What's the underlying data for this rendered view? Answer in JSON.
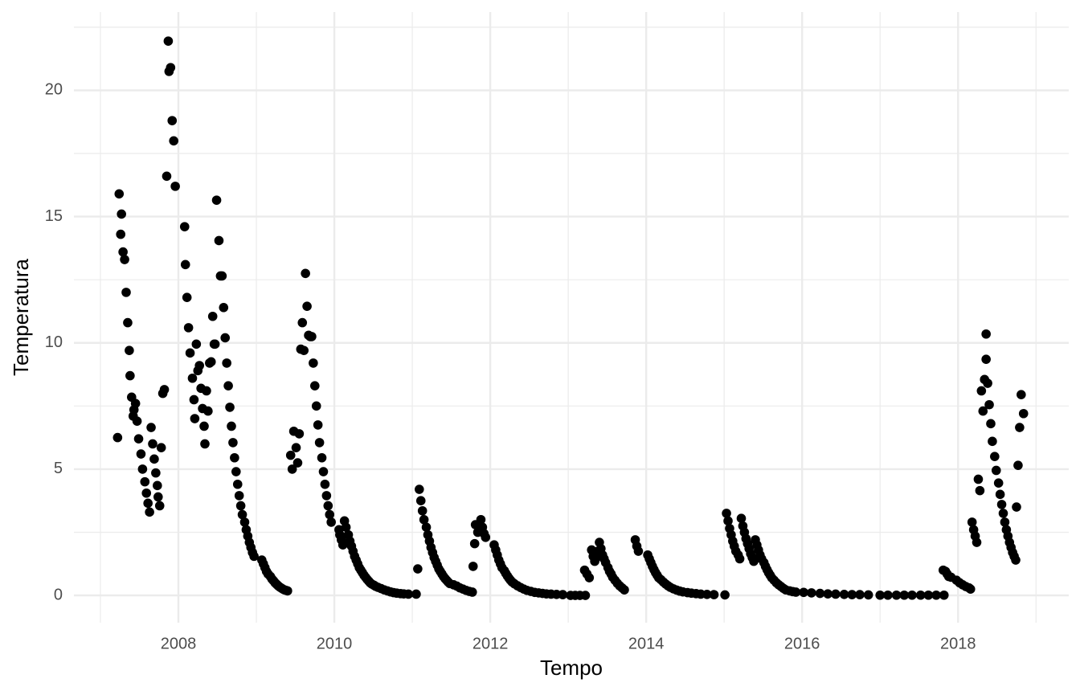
{
  "chart_data": {
    "type": "scatter",
    "x_label": "Tempo",
    "y_label": "Temperatura",
    "xlim": [
      2006.66,
      2019.42
    ],
    "ylim": [
      -1.08,
      23.1
    ],
    "xticks": [
      2008,
      2010,
      2012,
      2014,
      2016,
      2018
    ],
    "yticks": [
      0,
      5,
      10,
      15,
      20
    ],
    "grid": true,
    "color": "#000000",
    "x": [
      2007.22,
      2007.24,
      2007.26,
      2007.27,
      2007.29,
      2007.31,
      2007.33,
      2007.35,
      2007.37,
      2007.38,
      2007.4,
      2007.42,
      2007.43,
      2007.45,
      2007.47,
      2007.49,
      2007.52,
      2007.54,
      2007.57,
      2007.59,
      2007.61,
      2007.63,
      2007.65,
      2007.67,
      2007.69,
      2007.71,
      2007.73,
      2007.74,
      2007.76,
      2007.78,
      2007.8,
      2007.82,
      2007.85,
      2007.87,
      2007.88,
      2007.9,
      2007.92,
      2007.94,
      2007.96,
      2008.08,
      2008.09,
      2008.11,
      2008.13,
      2008.15,
      2008.18,
      2008.2,
      2008.21,
      2008.23,
      2008.25,
      2008.27,
      2008.29,
      2008.31,
      2008.33,
      2008.34,
      2008.36,
      2008.38,
      2008.4,
      2008.42,
      2008.44,
      2008.46,
      2008.47,
      2008.49,
      2008.52,
      2008.54,
      2008.56,
      2008.58,
      2008.6,
      2008.62,
      2008.64,
      2008.66,
      2008.68,
      2008.7,
      2008.72,
      2008.74,
      2008.76,
      2008.78,
      2008.8,
      2008.82,
      2008.85,
      2008.87,
      2008.89,
      2008.91,
      2008.93,
      2008.95,
      2008.97,
      2009.07,
      2009.09,
      2009.11,
      2009.13,
      2009.15,
      2009.18,
      2009.2,
      2009.22,
      2009.24,
      2009.26,
      2009.28,
      2009.3,
      2009.32,
      2009.34,
      2009.36,
      2009.38,
      2009.4,
      2009.44,
      2009.46,
      2009.48,
      2009.51,
      2009.53,
      2009.55,
      2009.57,
      2009.59,
      2009.61,
      2009.63,
      2009.65,
      2009.67,
      2009.69,
      2009.71,
      2009.73,
      2009.75,
      2009.77,
      2009.79,
      2009.81,
      2009.84,
      2009.86,
      2009.88,
      2009.9,
      2009.92,
      2009.94,
      2009.96,
      2010.06,
      2010.07,
      2010.09,
      2010.11,
      2010.13,
      2010.15,
      2010.18,
      2010.2,
      2010.22,
      2010.24,
      2010.26,
      2010.28,
      2010.3,
      2010.32,
      2010.34,
      2010.36,
      2010.38,
      2010.4,
      2010.42,
      2010.44,
      2010.46,
      2010.48,
      2010.51,
      2010.53,
      2010.56,
      2010.6,
      2010.64,
      2010.68,
      2010.72,
      2010.76,
      2010.8,
      2010.85,
      2010.89,
      2010.95,
      2011.05,
      2011.07,
      2011.09,
      2011.11,
      2011.13,
      2011.15,
      2011.18,
      2011.2,
      2011.22,
      2011.24,
      2011.26,
      2011.28,
      2011.3,
      2011.32,
      2011.34,
      2011.36,
      2011.38,
      2011.4,
      2011.42,
      2011.44,
      2011.46,
      2011.48,
      2011.53,
      2011.57,
      2011.61,
      2011.65,
      2011.69,
      2011.73,
      2011.77,
      2011.78,
      2011.8,
      2011.81,
      2011.84,
      2011.86,
      2011.88,
      2011.9,
      2011.92,
      2011.94,
      2012.05,
      2012.07,
      2012.09,
      2012.11,
      2012.13,
      2012.15,
      2012.18,
      2012.2,
      2012.22,
      2012.24,
      2012.26,
      2012.28,
      2012.31,
      2012.35,
      2012.39,
      2012.43,
      2012.47,
      2012.52,
      2012.57,
      2012.62,
      2012.67,
      2012.72,
      2012.78,
      2012.85,
      2012.93,
      2013.03,
      2013.09,
      2013.15,
      2013.22,
      2013.21,
      2013.24,
      2013.27,
      2013.3,
      2013.32,
      2013.34,
      2013.36,
      2013.38,
      2013.4,
      2013.42,
      2013.44,
      2013.46,
      2013.48,
      2013.51,
      2013.53,
      2013.55,
      2013.57,
      2013.6,
      2013.63,
      2013.66,
      2013.69,
      2013.72,
      2013.86,
      2013.88,
      2013.9,
      2014.02,
      2014.04,
      2014.06,
      2014.08,
      2014.1,
      2014.12,
      2014.14,
      2014.16,
      2014.19,
      2014.22,
      2014.25,
      2014.28,
      2014.31,
      2014.35,
      2014.39,
      2014.43,
      2014.47,
      2014.53,
      2014.58,
      2014.64,
      2014.7,
      2014.78,
      2014.87,
      2015.01,
      2015.03,
      2015.05,
      2015.07,
      2015.09,
      2015.11,
      2015.13,
      2015.15,
      2015.18,
      2015.2,
      2015.22,
      2015.24,
      2015.26,
      2015.28,
      2015.3,
      2015.32,
      2015.34,
      2015.36,
      2015.38,
      2015.4,
      2015.42,
      2015.44,
      2015.46,
      2015.48,
      2015.51,
      2015.53,
      2015.55,
      2015.57,
      2015.59,
      2015.61,
      2015.64,
      2015.67,
      2015.7,
      2015.73,
      2015.76,
      2015.79,
      2015.84,
      2015.88,
      2015.92,
      2016.02,
      2016.12,
      2016.23,
      2016.33,
      2016.43,
      2016.54,
      2016.64,
      2016.74,
      2016.85,
      2017.0,
      2017.1,
      2017.21,
      2017.31,
      2017.41,
      2017.52,
      2017.62,
      2017.72,
      2017.82,
      2017.81,
      2017.84,
      2017.86,
      2017.88,
      2017.91,
      2017.98,
      2018.02,
      2018.06,
      2018.1,
      2018.14,
      2018.16,
      2018.18,
      2018.2,
      2018.22,
      2018.24,
      2018.26,
      2018.28,
      2018.3,
      2018.32,
      2018.34,
      2018.36,
      2018.36,
      2018.38,
      2018.4,
      2018.42,
      2018.44,
      2018.47,
      2018.49,
      2018.52,
      2018.54,
      2018.56,
      2018.58,
      2018.6,
      2018.62,
      2018.64,
      2018.66,
      2018.68,
      2018.7,
      2018.72,
      2018.74,
      2018.75,
      2018.77,
      2018.79,
      2018.81,
      2018.84
    ],
    "y": [
      6.25,
      15.9,
      14.3,
      15.1,
      13.6,
      13.3,
      12.0,
      10.8,
      9.7,
      8.7,
      7.85,
      7.1,
      7.35,
      7.6,
      6.9,
      6.2,
      5.6,
      5.0,
      4.5,
      4.05,
      3.65,
      3.3,
      6.65,
      6.0,
      5.4,
      4.85,
      4.35,
      3.9,
      3.55,
      5.85,
      8.0,
      8.15,
      16.6,
      21.95,
      20.75,
      20.9,
      18.8,
      18.0,
      16.2,
      14.6,
      13.1,
      11.8,
      10.6,
      9.6,
      8.6,
      7.75,
      7.0,
      9.95,
      8.9,
      9.1,
      8.2,
      7.4,
      6.7,
      6.0,
      8.1,
      7.3,
      9.2,
      9.25,
      11.05,
      9.95,
      9.95,
      15.65,
      14.05,
      12.65,
      12.65,
      11.4,
      10.2,
      9.2,
      8.3,
      7.45,
      6.7,
      6.05,
      5.45,
      4.9,
      4.4,
      3.95,
      3.55,
      3.2,
      2.9,
      2.6,
      2.35,
      2.1,
      1.9,
      1.7,
      1.55,
      1.4,
      1.25,
      1.1,
      0.95,
      0.85,
      0.75,
      0.65,
      0.58,
      0.5,
      0.44,
      0.38,
      0.33,
      0.29,
      0.25,
      0.22,
      0.2,
      0.18,
      5.55,
      5.0,
      6.5,
      5.85,
      5.25,
      6.4,
      9.75,
      10.8,
      9.7,
      12.75,
      11.45,
      10.3,
      10.25,
      10.25,
      9.2,
      8.3,
      7.5,
      6.75,
      6.05,
      5.45,
      4.9,
      4.4,
      3.95,
      3.55,
      3.2,
      2.9,
      2.6,
      2.4,
      2.2,
      2.0,
      2.95,
      2.7,
      2.4,
      2.15,
      1.95,
      1.75,
      1.55,
      1.4,
      1.25,
      1.1,
      1.0,
      0.9,
      0.8,
      0.72,
      0.64,
      0.57,
      0.5,
      0.45,
      0.4,
      0.36,
      0.32,
      0.27,
      0.22,
      0.18,
      0.14,
      0.11,
      0.09,
      0.07,
      0.06,
      0.05,
      0.05,
      1.05,
      4.2,
      3.75,
      3.35,
      3.0,
      2.7,
      2.4,
      2.15,
      1.9,
      1.7,
      1.5,
      1.35,
      1.2,
      1.05,
      0.95,
      0.85,
      0.75,
      0.67,
      0.6,
      0.53,
      0.47,
      0.42,
      0.37,
      0.3,
      0.25,
      0.2,
      0.16,
      0.13,
      1.15,
      2.05,
      2.8,
      2.5,
      2.75,
      3.0,
      2.7,
      2.45,
      2.3,
      2.0,
      1.8,
      1.6,
      1.4,
      1.25,
      1.1,
      0.98,
      0.87,
      0.77,
      0.68,
      0.6,
      0.53,
      0.46,
      0.38,
      0.31,
      0.25,
      0.2,
      0.16,
      0.12,
      0.1,
      0.08,
      0.06,
      0.05,
      0.04,
      0.03,
      0.0,
      0.0,
      0.0,
      0.0,
      1.0,
      0.85,
      0.7,
      1.8,
      1.55,
      1.35,
      1.5,
      1.75,
      2.1,
      1.85,
      1.6,
      1.45,
      1.3,
      1.1,
      0.95,
      0.85,
      0.72,
      0.6,
      0.48,
      0.38,
      0.3,
      0.22,
      2.2,
      1.95,
      1.75,
      1.6,
      1.45,
      1.3,
      1.15,
      1.02,
      0.9,
      0.8,
      0.7,
      0.62,
      0.53,
      0.45,
      0.38,
      0.32,
      0.26,
      0.21,
      0.17,
      0.14,
      0.11,
      0.09,
      0.07,
      0.05,
      0.04,
      0.03,
      0.02,
      3.25,
      2.95,
      2.65,
      2.4,
      2.15,
      1.95,
      1.75,
      1.6,
      1.45,
      3.05,
      2.75,
      2.5,
      2.25,
      2.05,
      1.85,
      1.65,
      1.5,
      1.35,
      2.2,
      2.0,
      1.8,
      1.6,
      1.45,
      1.3,
      1.15,
      1.02,
      0.9,
      0.8,
      0.7,
      0.6,
      0.5,
      0.42,
      0.35,
      0.28,
      0.22,
      0.18,
      0.15,
      0.13,
      0.12,
      0.1,
      0.08,
      0.06,
      0.05,
      0.04,
      0.03,
      0.03,
      0.02,
      0.01,
      0.01,
      0.01,
      0.01,
      0.01,
      0.01,
      0.01,
      0.01,
      0.01,
      1.0,
      0.95,
      0.85,
      0.75,
      0.72,
      0.6,
      0.5,
      0.42,
      0.35,
      0.3,
      0.25,
      2.9,
      2.6,
      2.35,
      2.1,
      4.6,
      4.15,
      8.1,
      7.3,
      8.55,
      9.35,
      10.35,
      8.4,
      7.55,
      6.8,
      6.1,
      5.5,
      4.95,
      4.45,
      4.0,
      3.6,
      3.25,
      2.9,
      2.6,
      2.35,
      2.1,
      1.9,
      1.7,
      1.55,
      1.4,
      3.5,
      5.15,
      6.65,
      7.95,
      7.2
    ]
  }
}
